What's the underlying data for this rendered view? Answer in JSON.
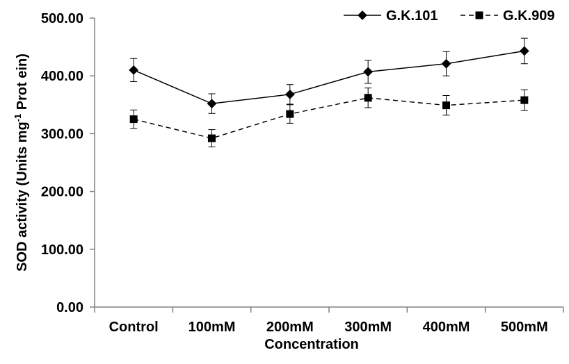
{
  "chart_data": {
    "type": "line",
    "title": "",
    "xlabel": "Concentration",
    "ylabel": {
      "main": "SOD activity (Units mg",
      "superscript": "-1",
      "tail": " Prot ein)"
    },
    "categories": [
      "Control",
      "100mM",
      "200mM",
      "300mM",
      "400mM",
      "500mM"
    ],
    "ylim": [
      0,
      500
    ],
    "yticks": [
      "0.00",
      "100.00",
      "200.00",
      "300.00",
      "400.00",
      "500.00"
    ],
    "ytick_values": [
      0,
      100,
      200,
      300,
      400,
      500
    ],
    "grid": false,
    "legend_position": "top-right",
    "series": [
      {
        "name": "G.K.101",
        "marker": "diamond",
        "line_style": "solid",
        "values": [
          410,
          352,
          368,
          407,
          421,
          443
        ],
        "errors": [
          20,
          17,
          17,
          20,
          21,
          22
        ]
      },
      {
        "name": "G.K.909",
        "marker": "square",
        "line_style": "dashed",
        "values": [
          325,
          292,
          334,
          362,
          349,
          358
        ],
        "errors": [
          16,
          15,
          16,
          17,
          17,
          18
        ]
      }
    ]
  }
}
